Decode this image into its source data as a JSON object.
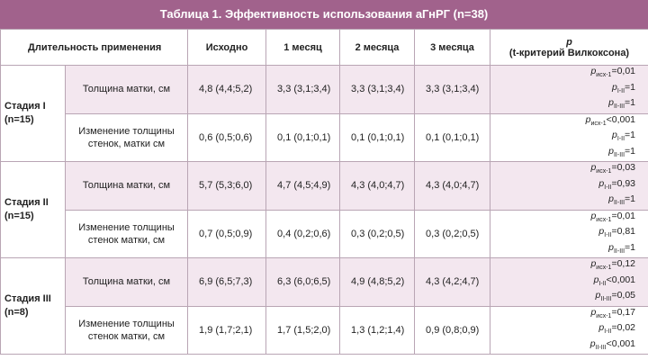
{
  "title": "Таблица 1. Эффективность использования аГнРГ (n=38)",
  "header": {
    "duration": "Длительность применения",
    "baseline": "Исходно",
    "month1": "1 месяц",
    "month2": "2 месяца",
    "month3": "3 месяца",
    "p_label": "p",
    "p_sub": "(t-критерий Вилкоксона)"
  },
  "stages": [
    {
      "name": "Стадия I",
      "n": "(n=15)",
      "rows": [
        {
          "param": "Толщина матки, см",
          "values": [
            "4,8 (4,4;5,2)",
            "3,3 (3,1;3,4)",
            "3,3 (3,1;3,4)",
            "3,3 (3,1;3,4)"
          ],
          "p": [
            {
              "sub": "исх-1",
              "val": "=0,01"
            },
            {
              "sub": "I-II",
              "val": "=1"
            },
            {
              "sub": "II-III",
              "val": "=1"
            }
          ]
        },
        {
          "param": "Изменение толщины стенок, матки см",
          "values": [
            "0,6 (0,5;0,6)",
            "0,1 (0,1;0,1)",
            "0,1 (0,1;0,1)",
            "0,1 (0,1;0,1)"
          ],
          "p": [
            {
              "sub": "исх-1",
              "val": "<0,001"
            },
            {
              "sub": "I-II",
              "val": "=1"
            },
            {
              "sub": "II-III",
              "val": "=1"
            }
          ]
        }
      ]
    },
    {
      "name": "Стадия II",
      "n": "(n=15)",
      "rows": [
        {
          "param": "Толщина матки, см",
          "values": [
            "5,7 (5,3;6,0)",
            "4,7 (4,5;4,9)",
            "4,3 (4,0;4,7)",
            "4,3 (4,0;4,7)"
          ],
          "p": [
            {
              "sub": "исх-1",
              "val": "=0,03"
            },
            {
              "sub": "I-II",
              "val": "=0,93"
            },
            {
              "sub": "II-III",
              "val": "=1"
            }
          ]
        },
        {
          "param": "Изменение толщины стенок матки, см",
          "values": [
            "0,7 (0,5;0,9)",
            "0,4 (0,2;0,6)",
            "0,3 (0,2;0,5)",
            "0,3 (0,2;0,5)"
          ],
          "p": [
            {
              "sub": "исх-1",
              "val": "=0,01"
            },
            {
              "sub": "I-II",
              "val": "=0,81"
            },
            {
              "sub": "II-III",
              "val": "=1"
            }
          ]
        }
      ]
    },
    {
      "name": "Стадия III",
      "n": "(n=8)",
      "rows": [
        {
          "param": "Толщина матки, см",
          "values": [
            "6,9 (6,5;7,3)",
            "6,3 (6,0;6,5)",
            "4,9 (4,8;5,2)",
            "4,3 (4,2;4,7)"
          ],
          "p": [
            {
              "sub": "исх-1",
              "val": "=0,12"
            },
            {
              "sub": "I-II",
              "val": "<0,001"
            },
            {
              "sub": "II-III",
              "val": "=0,05"
            }
          ]
        },
        {
          "param": "Изменение толщины стенок матки, см",
          "values": [
            "1,9 (1,7;2,1)",
            "1,7 (1,5;2,0)",
            "1,3 (1,2;1,4)",
            "0,9 (0,8;0,9)"
          ],
          "p": [
            {
              "sub": "исх-1",
              "val": "=0,17"
            },
            {
              "sub": "I-II",
              "val": "=0,02"
            },
            {
              "sub": "II-III",
              "val": "<0,001"
            }
          ]
        }
      ]
    }
  ]
}
